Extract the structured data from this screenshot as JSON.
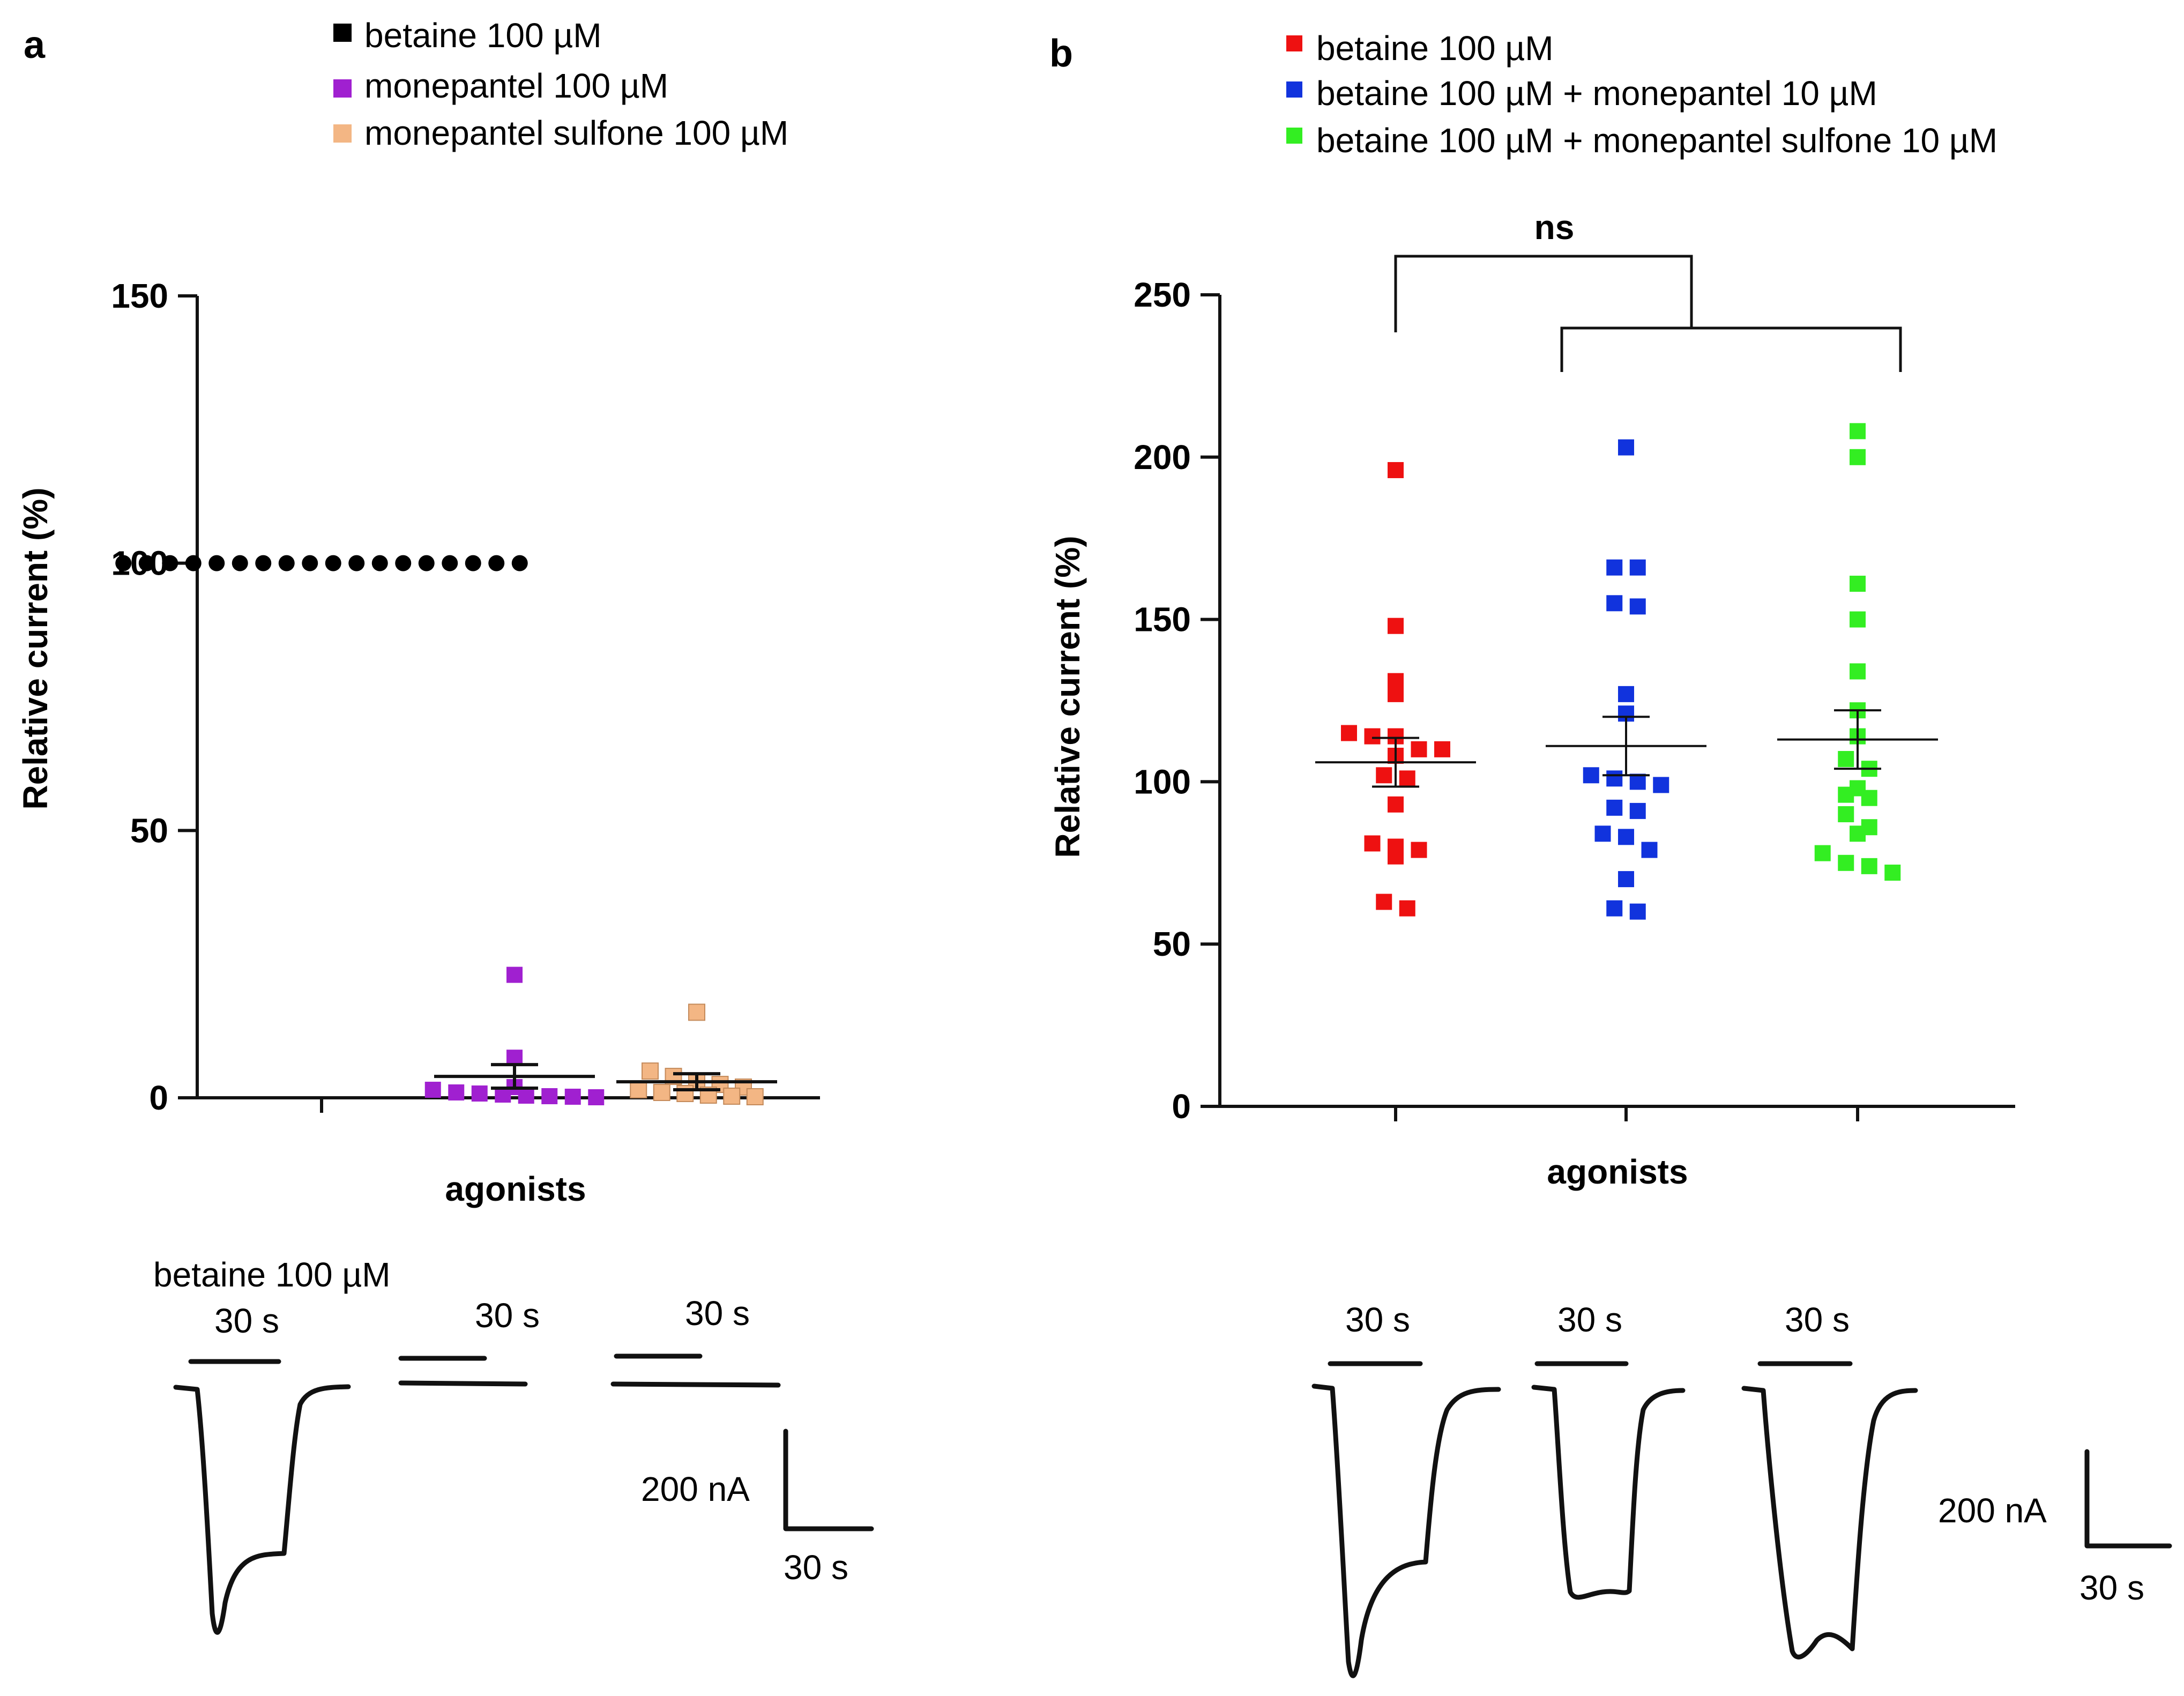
{
  "chart_data": [
    {
      "panel": "a",
      "type": "scatter",
      "ylabel": "Relative current (%)",
      "xlabel": "agonists",
      "ylim": [
        0,
        150
      ],
      "yticks": [
        0,
        50,
        100,
        150
      ],
      "legend_position": "top",
      "series": [
        {
          "name": "betaine 100 µM",
          "color": "#000000",
          "marker": "circle",
          "values": [
            100,
            100,
            100,
            100,
            100,
            100,
            100,
            100,
            100,
            100,
            100,
            100,
            100,
            100,
            100,
            100,
            100,
            100
          ],
          "mean": 100,
          "sem": 0
        },
        {
          "name": "monepantel 100 µM",
          "color": "#a020d0",
          "marker": "square",
          "values": [
            23,
            7.5,
            2,
            1.5,
            1,
            0.8,
            0.6,
            0.4,
            0.3,
            0.2,
            0.1
          ],
          "mean": 4,
          "sem": 2.2
        },
        {
          "name": "monepantel sulfone 100 µM",
          "color": "#f3b684",
          "marker": "square",
          "values": [
            16,
            5,
            4,
            3,
            2.5,
            2,
            1.5,
            1,
            0.8,
            0.5,
            0.3,
            0.2
          ],
          "mean": 3,
          "sem": 1.5
        }
      ],
      "traces": {
        "treatment_label": "betaine 100 µM",
        "duration_labels": [
          "30 s",
          "30 s",
          "30 s"
        ],
        "scale_current": "200 nA",
        "scale_time": "30 s"
      }
    },
    {
      "panel": "b",
      "type": "scatter",
      "ylabel": "Relative current (%)",
      "xlabel": "agonists",
      "ylim": [
        0,
        250
      ],
      "yticks": [
        0,
        50,
        100,
        150,
        200,
        250
      ],
      "legend_position": "top",
      "annotation": "ns",
      "series": [
        {
          "name": "betaine 100 µM",
          "color": "#ee1111",
          "marker": "square",
          "values": [
            196,
            148,
            131,
            127,
            115,
            114,
            114,
            110,
            110,
            108,
            102,
            101,
            93,
            81,
            80,
            79,
            77,
            63,
            61
          ],
          "mean": 106,
          "sem": 7.5
        },
        {
          "name": "betaine 100 µM + monepantel 10 µM",
          "color": "#1133dd",
          "marker": "square",
          "values": [
            203,
            166,
            166,
            155,
            154,
            127,
            121,
            102,
            101,
            100,
            99,
            92,
            91,
            84,
            83,
            79,
            70,
            61,
            60
          ],
          "mean": 111,
          "sem": 9
        },
        {
          "name": "betaine 100 µM + monepantel sulfone 10 µM",
          "color": "#33ee22",
          "marker": "square",
          "values": [
            208,
            200,
            161,
            150,
            134,
            122,
            114,
            107,
            104,
            98,
            96,
            95,
            90,
            86,
            84,
            78,
            75,
            74,
            72
          ],
          "mean": 113,
          "sem": 9
        }
      ],
      "traces": {
        "duration_labels": [
          "30 s",
          "30 s",
          "30 s"
        ],
        "scale_current": "200 nA",
        "scale_time": "30 s"
      }
    }
  ]
}
